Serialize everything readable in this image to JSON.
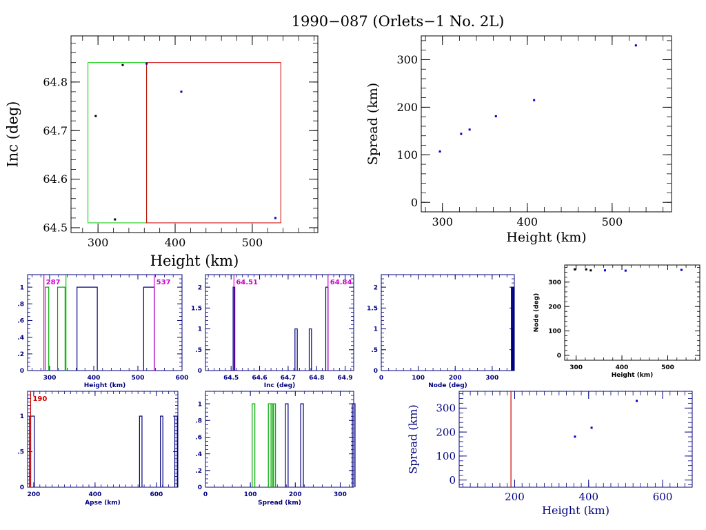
{
  "title": "1990−087 (Orlets−1 No. 2L)",
  "chart_data": [
    {
      "id": "inc_vs_height",
      "type": "scatter",
      "xlabel": "Height (km)",
      "ylabel": "Inc (deg)",
      "xlim": [
        265,
        585
      ],
      "ylim": [
        64.49,
        64.895
      ],
      "xticks": [
        300,
        400,
        500
      ],
      "yticks": [
        64.5,
        64.6,
        64.7,
        64.8
      ],
      "x_minor": 20,
      "y_minor": 0.02,
      "points": [
        {
          "x": 297,
          "y": 64.73,
          "color": "#000000"
        },
        {
          "x": 322,
          "y": 64.517,
          "color": "#000000"
        },
        {
          "x": 332,
          "y": 64.835,
          "color": "#000000"
        },
        {
          "x": 363,
          "y": 64.838,
          "color": "#0000cc"
        },
        {
          "x": 408,
          "y": 64.78,
          "color": "#0000cc"
        },
        {
          "x": 530,
          "y": 64.52,
          "color": "#0000cc"
        }
      ],
      "boxes": [
        {
          "x0": 287,
          "x1": 363,
          "y0": 64.51,
          "y1": 64.84,
          "color": "#00cc00"
        },
        {
          "x0": 363,
          "x1": 537,
          "y0": 64.51,
          "y1": 64.84,
          "color": "#cc0000"
        }
      ]
    },
    {
      "id": "spread_vs_height",
      "type": "scatter",
      "xlabel": "Height (km)",
      "ylabel": "Spread (km)",
      "xlim": [
        275,
        570
      ],
      "ylim": [
        -20,
        350
      ],
      "xticks": [
        300,
        400,
        500
      ],
      "yticks": [
        0,
        100,
        200,
        300
      ],
      "x_minor": 20,
      "y_minor": 20,
      "points": [
        {
          "x": 297,
          "y": 107
        },
        {
          "x": 322,
          "y": 144
        },
        {
          "x": 332,
          "y": 153
        },
        {
          "x": 363,
          "y": 181
        },
        {
          "x": 408,
          "y": 215
        },
        {
          "x": 528,
          "y": 330
        }
      ]
    },
    {
      "id": "height_hist",
      "type": "bar",
      "xlabel": "Height (km)",
      "xlim": [
        250,
        600
      ],
      "ylim": [
        0,
        1.15
      ],
      "xticks": [
        300,
        400,
        500,
        600
      ],
      "yticks": [
        0,
        0.2,
        0.4,
        0.6,
        0.8,
        1
      ],
      "x_minor": 20,
      "y_minor": 0.05,
      "steps": [
        {
          "x0": 362,
          "x1": 408,
          "y": 1,
          "color": "#000080"
        },
        {
          "x0": 513,
          "x1": 537,
          "y": 1,
          "color": "#000080"
        },
        {
          "x0": 290,
          "x1": 298,
          "y": 1,
          "color": "#00aa00"
        },
        {
          "x0": 318,
          "x1": 335,
          "y": 1,
          "color": "#00aa00"
        }
      ],
      "vlines": [
        {
          "x": 287,
          "color": "#cc00cc"
        },
        {
          "x": 337,
          "color": "#00cc00"
        },
        {
          "x": 537,
          "color": "#cc00cc"
        }
      ],
      "annotations": [
        {
          "text": "287",
          "x": 287,
          "color": "#cc00cc",
          "side": "right"
        },
        {
          "text": "537",
          "x": 537,
          "color": "#cc00cc",
          "side": "right"
        }
      ]
    },
    {
      "id": "inc_hist",
      "type": "bar",
      "xlabel": "Inc (deg)",
      "xlim": [
        64.41,
        64.93
      ],
      "ylim": [
        0,
        2.3
      ],
      "xticks": [
        64.5,
        64.6,
        64.7,
        64.8,
        64.9
      ],
      "yticks": [
        0,
        0.5,
        1,
        1.5,
        2
      ],
      "x_minor": 0.02,
      "y_minor": 0.1,
      "steps": [
        {
          "x0": 64.507,
          "x1": 64.513,
          "y": 2,
          "color": "#000080"
        },
        {
          "x0": 64.724,
          "x1": 64.732,
          "y": 1,
          "color": "#000080"
        },
        {
          "x0": 64.774,
          "x1": 64.782,
          "y": 1,
          "color": "#000080"
        },
        {
          "x0": 64.832,
          "x1": 64.84,
          "y": 2,
          "color": "#000080"
        }
      ],
      "vlines": [
        {
          "x": 64.51,
          "color": "#cc00cc"
        },
        {
          "x": 64.84,
          "color": "#cc00cc"
        }
      ],
      "annotations": [
        {
          "text": "64.51",
          "x": 64.51,
          "color": "#cc00cc",
          "side": "right"
        },
        {
          "text": "64.84",
          "x": 64.84,
          "color": "#cc00cc",
          "side": "right"
        }
      ]
    },
    {
      "id": "node_hist",
      "type": "bar",
      "xlabel": "Node (deg)",
      "xlim": [
        0,
        360
      ],
      "ylim": [
        0,
        2.3
      ],
      "xticks": [
        0,
        100,
        200,
        300
      ],
      "yticks": [
        0,
        0.5,
        1,
        1.5,
        2
      ],
      "x_minor": 20,
      "y_minor": 0.1,
      "steps": [
        {
          "x0": 352,
          "x1": 354,
          "y": 2,
          "color": "#000080"
        },
        {
          "x0": 354,
          "x1": 356,
          "y": 1,
          "color": "#000080"
        },
        {
          "x0": 356,
          "x1": 358,
          "y": 2,
          "color": "#000080"
        }
      ],
      "vlines": [],
      "annotations": []
    },
    {
      "id": "node_vs_height",
      "type": "scatter",
      "xlabel": "Height (km)",
      "ylabel": "Node (deg)",
      "xlim": [
        275,
        570
      ],
      "ylim": [
        -20,
        370
      ],
      "xticks": [
        300,
        400,
        500
      ],
      "yticks": [
        0,
        100,
        200,
        300
      ],
      "x_minor": 20,
      "y_minor": 20,
      "points": [
        {
          "x": 297,
          "y": 352,
          "color": "#000000"
        },
        {
          "x": 322,
          "y": 352,
          "color": "#000000"
        },
        {
          "x": 332,
          "y": 348,
          "color": "#000000"
        },
        {
          "x": 363,
          "y": 348,
          "color": "#0000cc"
        },
        {
          "x": 408,
          "y": 347,
          "color": "#0000cc"
        },
        {
          "x": 530,
          "y": 350,
          "color": "#0000cc"
        }
      ]
    },
    {
      "id": "apse_hist",
      "type": "bar",
      "xlabel": "Apse (km)",
      "xlim": [
        180,
        670
      ],
      "ylim": [
        0,
        1.35
      ],
      "xticks": [
        200,
        400,
        600
      ],
      "yticks": [
        0,
        0.5,
        1
      ],
      "x_minor": 20,
      "y_minor": 0.05,
      "steps": [
        {
          "x0": 186,
          "x1": 190,
          "y": 1,
          "color": "#cc0000"
        },
        {
          "x0": 190,
          "x1": 202,
          "y": 1,
          "color": "#000080"
        },
        {
          "x0": 545,
          "x1": 553,
          "y": 1,
          "color": "#000080"
        },
        {
          "x0": 613,
          "x1": 621,
          "y": 1,
          "color": "#000080"
        },
        {
          "x0": 660,
          "x1": 668,
          "y": 1,
          "color": "#000080"
        }
      ],
      "vlines": [
        {
          "x": 190,
          "color": "#cc0000"
        }
      ],
      "annotations": [
        {
          "text": "190",
          "x": 190,
          "color": "#cc0000",
          "side": "right"
        }
      ]
    },
    {
      "id": "spread_hist",
      "type": "bar",
      "xlabel": "Spread (km)",
      "xlim": [
        0,
        330
      ],
      "ylim": [
        0,
        1.15
      ],
      "xticks": [
        0,
        100,
        200,
        300
      ],
      "yticks": [
        0,
        0.2,
        0.4,
        0.6,
        0.8,
        1
      ],
      "x_minor": 20,
      "y_minor": 0.05,
      "steps": [
        {
          "x0": 104,
          "x1": 110,
          "y": 1,
          "color": "#00aa00"
        },
        {
          "x0": 140,
          "x1": 146,
          "y": 1,
          "color": "#00aa00"
        },
        {
          "x0": 146,
          "x1": 150,
          "y": 1,
          "color": "#00aa00"
        },
        {
          "x0": 152,
          "x1": 156,
          "y": 1,
          "color": "#00aa00"
        },
        {
          "x0": 178,
          "x1": 184,
          "y": 1,
          "color": "#000080"
        },
        {
          "x0": 212,
          "x1": 218,
          "y": 1,
          "color": "#000080"
        },
        {
          "x0": 327,
          "x1": 333,
          "y": 1,
          "color": "#000080"
        }
      ],
      "vlines": [],
      "annotations": []
    },
    {
      "id": "spread_vs_height_2",
      "type": "scatter",
      "xlabel": "Height (km)",
      "ylabel": "Spread (km)",
      "xlim": [
        50,
        680
      ],
      "ylim": [
        -30,
        370
      ],
      "xticks": [
        200,
        400,
        600
      ],
      "yticks": [
        0,
        100,
        200,
        300
      ],
      "x_minor": 20,
      "y_minor": 20,
      "points": [
        {
          "x": 363,
          "y": 181,
          "color": "#0000cc"
        },
        {
          "x": 408,
          "y": 218,
          "color": "#0000cc"
        },
        {
          "x": 530,
          "y": 330,
          "color": "#0000cc"
        }
      ],
      "vlines": [
        {
          "x": 190,
          "color": "#cc0000"
        }
      ]
    }
  ]
}
